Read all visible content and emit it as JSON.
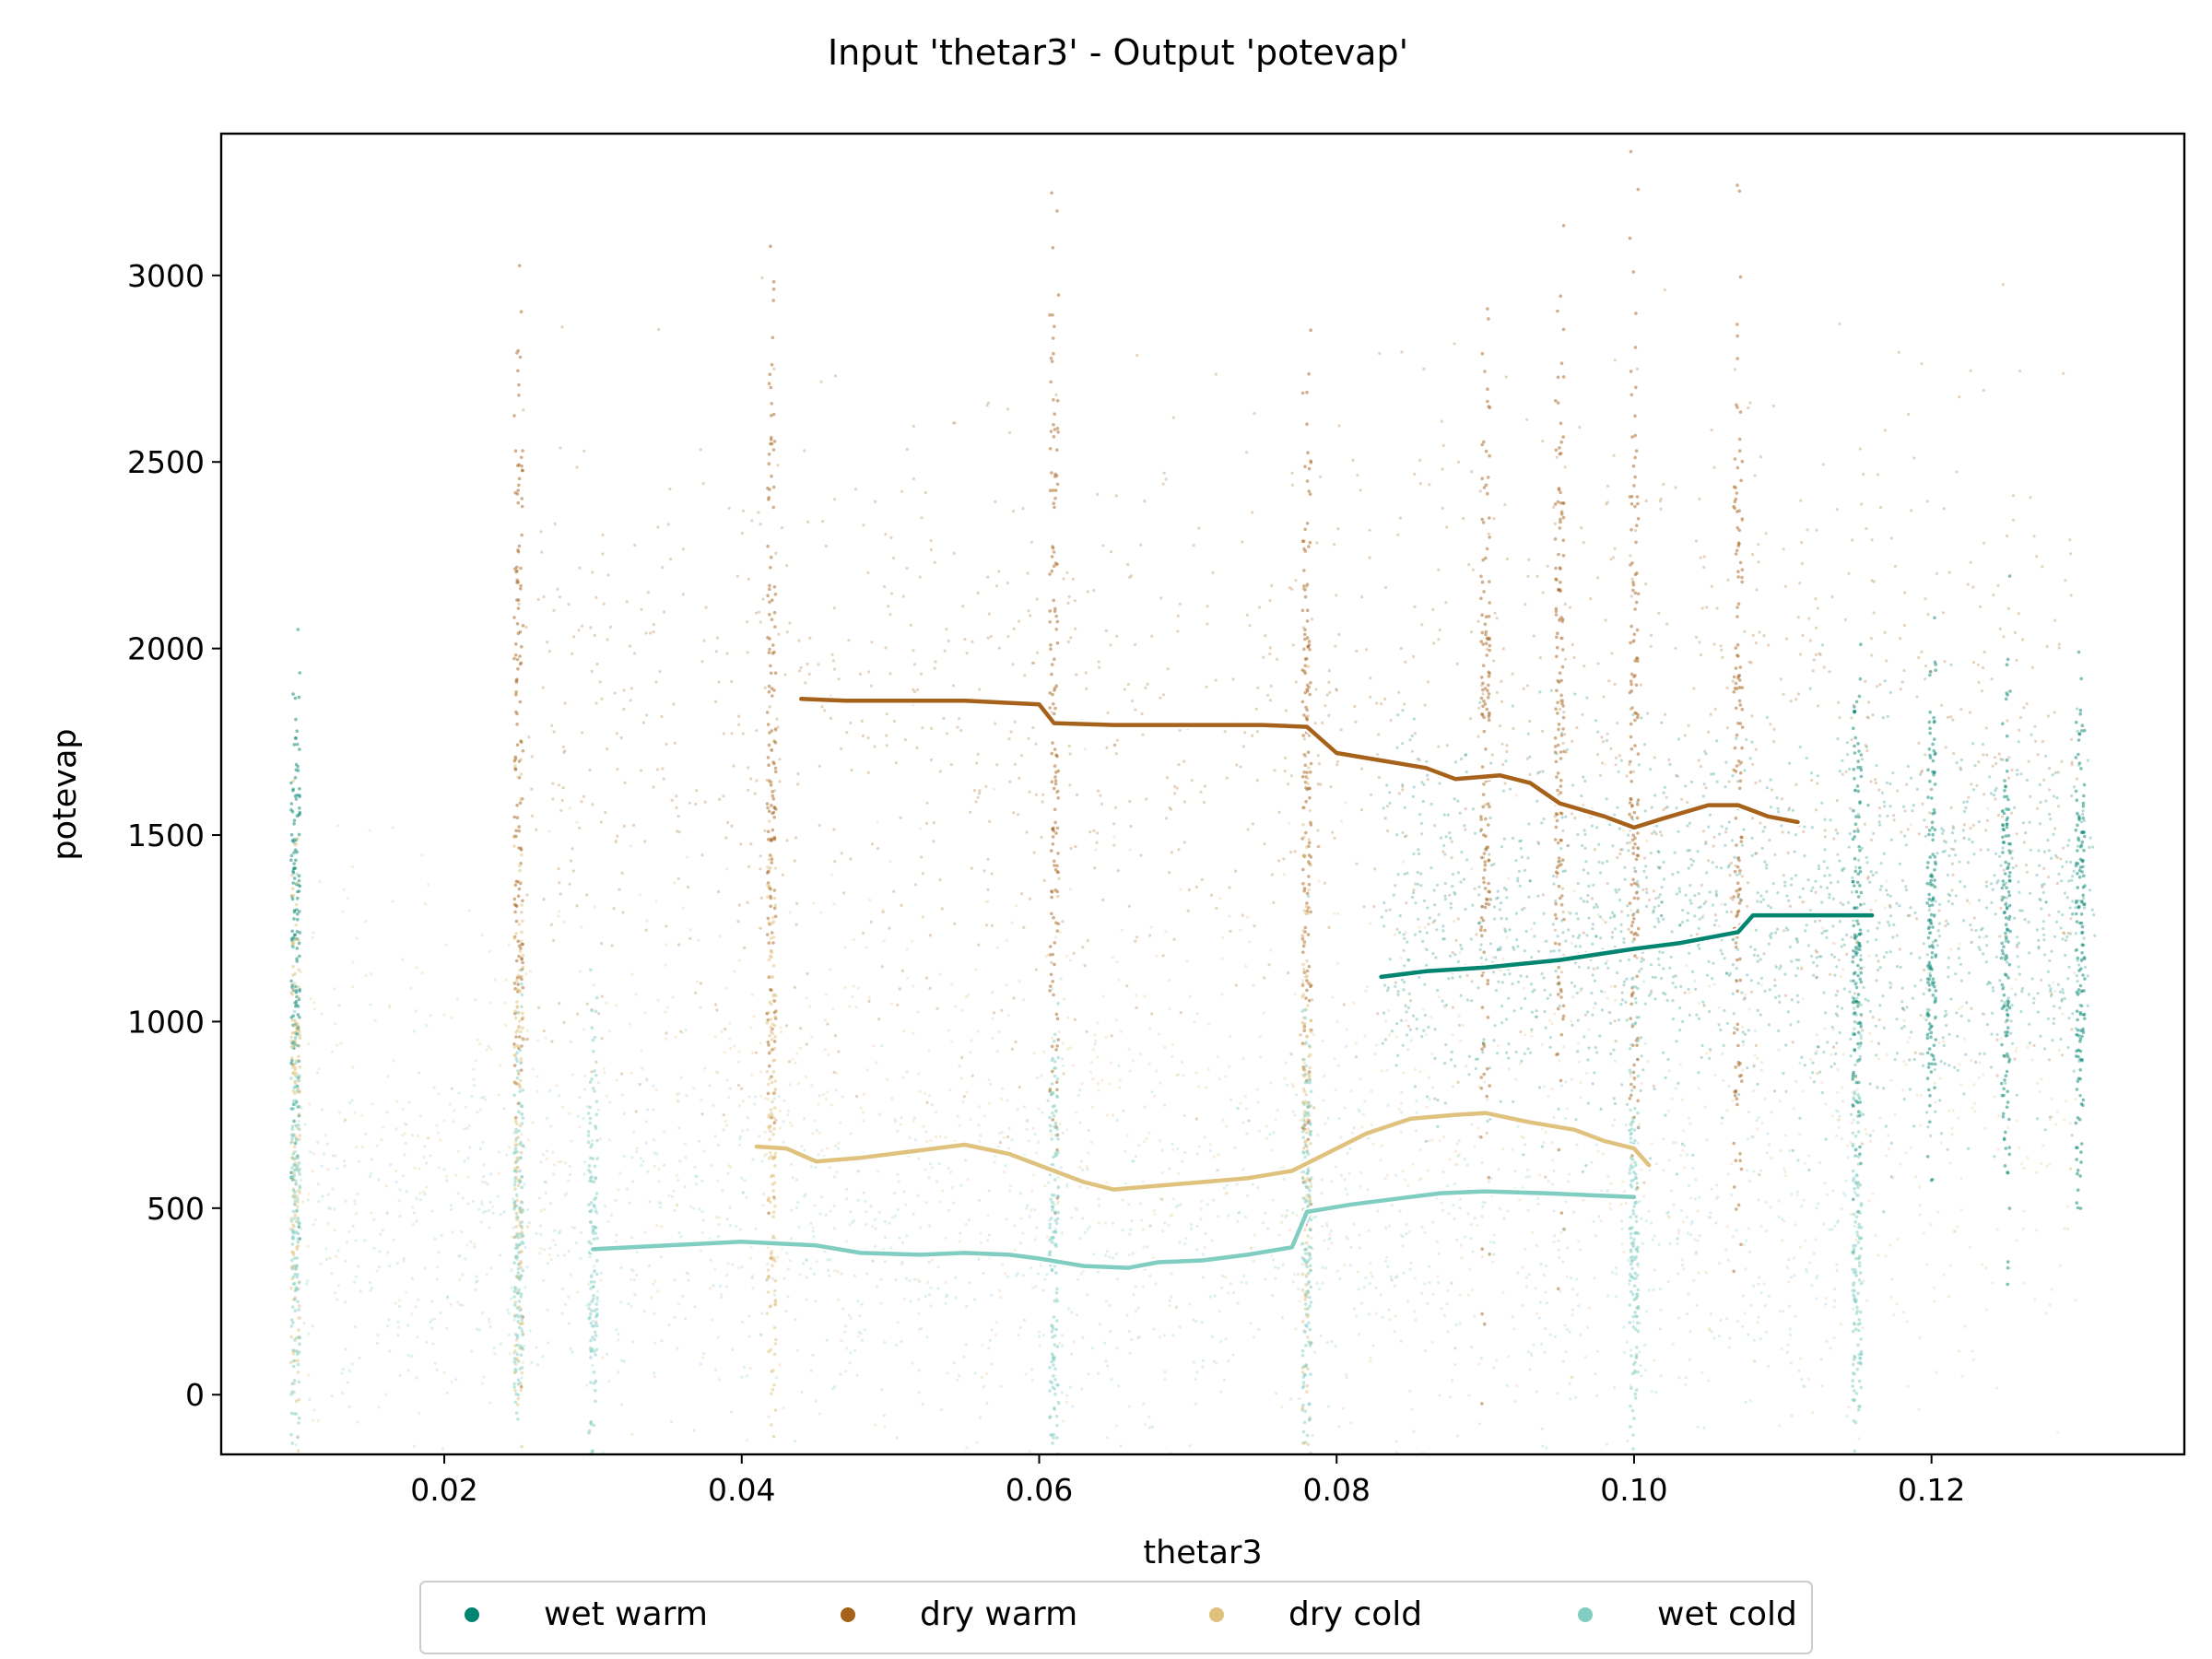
{
  "chart_data": {
    "type": "scatter",
    "title": "Input 'thetar3' - Output 'potevap'",
    "xlabel": "thetar3",
    "ylabel": "potevap",
    "xlim": [
      0.005,
      0.137
    ],
    "ylim": [
      -160,
      3380
    ],
    "xticks": [
      0.02,
      0.04,
      0.06,
      0.08,
      0.1,
      0.12
    ],
    "xtick_labels": [
      "0.02",
      "0.04",
      "0.06",
      "0.08",
      "0.10",
      "0.12"
    ],
    "yticks": [
      0,
      500,
      1000,
      1500,
      2000,
      2500,
      3000
    ],
    "ytick_labels": [
      "0",
      "500",
      "1000",
      "1500",
      "2000",
      "2500",
      "3000"
    ],
    "grid": false,
    "legend_position": "bottom-center",
    "series": [
      {
        "name": "wet warm",
        "color": "#018571",
        "point_cloud": {
          "x_range": [
            0.083,
            0.131
          ],
          "y_center": 1250,
          "y_spread": 250,
          "vertical_bands_x": [
            0.01,
            0.115,
            0.12,
            0.125,
            0.13
          ]
        },
        "trend": [
          [
            0.083,
            1120
          ],
          [
            0.086,
            1135
          ],
          [
            0.09,
            1145
          ],
          [
            0.095,
            1165
          ],
          [
            0.1,
            1195
          ],
          [
            0.103,
            1210
          ],
          [
            0.107,
            1240
          ],
          [
            0.108,
            1285
          ],
          [
            0.112,
            1285
          ],
          [
            0.116,
            1285
          ]
        ]
      },
      {
        "name": "dry warm",
        "color": "#a6611a",
        "point_cloud": {
          "x_range": [
            0.025,
            0.13
          ],
          "y_center": 1750,
          "y_spread": 450,
          "vertical_bands_x": [
            0.025,
            0.042,
            0.061,
            0.078,
            0.09,
            0.095,
            0.1,
            0.107
          ]
        },
        "trend": [
          [
            0.044,
            1865
          ],
          [
            0.047,
            1860
          ],
          [
            0.05,
            1860
          ],
          [
            0.055,
            1860
          ],
          [
            0.06,
            1850
          ],
          [
            0.061,
            1800
          ],
          [
            0.065,
            1795
          ],
          [
            0.07,
            1795
          ],
          [
            0.075,
            1795
          ],
          [
            0.078,
            1790
          ],
          [
            0.08,
            1720
          ],
          [
            0.083,
            1700
          ],
          [
            0.086,
            1680
          ],
          [
            0.088,
            1650
          ],
          [
            0.091,
            1660
          ],
          [
            0.093,
            1640
          ],
          [
            0.095,
            1585
          ],
          [
            0.098,
            1550
          ],
          [
            0.1,
            1520
          ],
          [
            0.102,
            1545
          ],
          [
            0.105,
            1580
          ],
          [
            0.107,
            1580
          ],
          [
            0.109,
            1550
          ],
          [
            0.111,
            1535
          ]
        ]
      },
      {
        "name": "dry cold",
        "color": "#dfc27d",
        "point_cloud": {
          "x_range": [
            0.01,
            0.13
          ],
          "y_center": 700,
          "y_spread": 350,
          "vertical_bands_x": [
            0.01,
            0.025,
            0.042,
            0.078
          ]
        },
        "trend": [
          [
            0.041,
            665
          ],
          [
            0.043,
            660
          ],
          [
            0.045,
            625
          ],
          [
            0.048,
            635
          ],
          [
            0.052,
            655
          ],
          [
            0.055,
            670
          ],
          [
            0.058,
            645
          ],
          [
            0.061,
            600
          ],
          [
            0.063,
            570
          ],
          [
            0.065,
            550
          ],
          [
            0.068,
            560
          ],
          [
            0.071,
            570
          ],
          [
            0.074,
            580
          ],
          [
            0.077,
            600
          ],
          [
            0.079,
            640
          ],
          [
            0.082,
            700
          ],
          [
            0.085,
            740
          ],
          [
            0.088,
            750
          ],
          [
            0.09,
            755
          ],
          [
            0.093,
            730
          ],
          [
            0.096,
            710
          ],
          [
            0.098,
            680
          ],
          [
            0.1,
            660
          ],
          [
            0.101,
            615
          ]
        ]
      },
      {
        "name": "wet cold",
        "color": "#80cdc1",
        "point_cloud": {
          "x_range": [
            0.01,
            0.115
          ],
          "y_center": 400,
          "y_spread": 250,
          "vertical_bands_x": [
            0.01,
            0.025,
            0.03,
            0.061,
            0.078,
            0.1,
            0.115
          ]
        },
        "trend": [
          [
            0.03,
            390
          ],
          [
            0.035,
            400
          ],
          [
            0.04,
            410
          ],
          [
            0.045,
            400
          ],
          [
            0.048,
            380
          ],
          [
            0.052,
            375
          ],
          [
            0.055,
            380
          ],
          [
            0.058,
            375
          ],
          [
            0.06,
            365
          ],
          [
            0.063,
            345
          ],
          [
            0.066,
            340
          ],
          [
            0.068,
            355
          ],
          [
            0.071,
            360
          ],
          [
            0.074,
            375
          ],
          [
            0.077,
            395
          ],
          [
            0.078,
            490
          ],
          [
            0.081,
            510
          ],
          [
            0.084,
            525
          ],
          [
            0.087,
            540
          ],
          [
            0.09,
            545
          ],
          [
            0.094,
            540
          ],
          [
            0.097,
            535
          ],
          [
            0.1,
            530
          ]
        ]
      }
    ]
  }
}
